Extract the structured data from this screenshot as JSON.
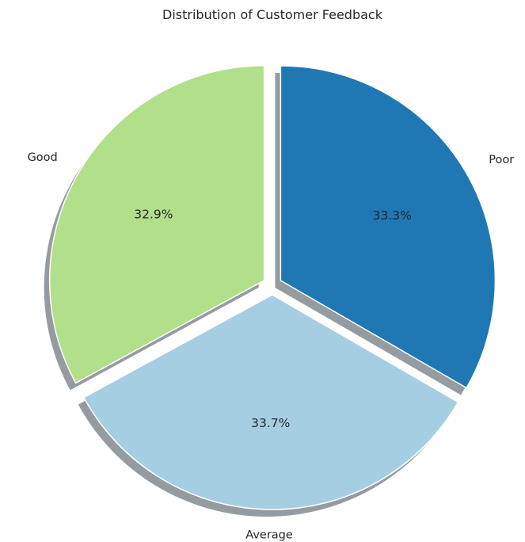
{
  "chart_data": {
    "type": "pie",
    "title": "Distribution of Customer Feedback",
    "categories": [
      "Good",
      "Average",
      "Poor"
    ],
    "values": [
      32.9,
      33.7,
      33.3
    ],
    "percent_labels": [
      "32.9%",
      "33.7%",
      "33.3%"
    ],
    "colors": [
      "#b2df8a",
      "#a6cee3",
      "#1f78b4"
    ],
    "exploded": true,
    "shadow": true
  }
}
